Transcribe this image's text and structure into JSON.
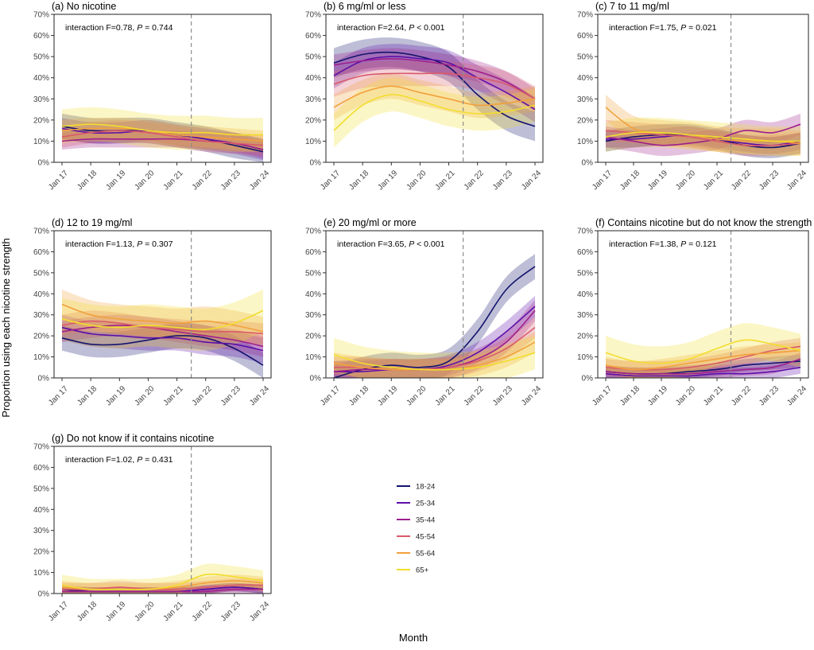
{
  "figure": {
    "ylabel": "Proportion using each nicotine strength",
    "xlabel": "Month"
  },
  "legend": {
    "position": "bottom-center",
    "items": [
      {
        "label": "18-24",
        "color": "#14146e"
      },
      {
        "label": "25-34",
        "color": "#5c0fa8"
      },
      {
        "label": "35-44",
        "color": "#9e1f8c"
      },
      {
        "label": "45-54",
        "color": "#d95a6a"
      },
      {
        "label": "55-64",
        "color": "#f2a03c"
      },
      {
        "label": "65+",
        "color": "#f2dd2e"
      }
    ]
  },
  "chart_data": [
    {
      "type": "line",
      "title": "(a) No nicotine",
      "annotation": {
        "prefix": "interaction F=0.78, ",
        "p_label": "P",
        "p_text": " = 0.744"
      },
      "categories": [
        "Jan 17",
        "Jan 18",
        "Jan 19",
        "Jan 20",
        "Jan 21",
        "Jan 22",
        "Jan 23",
        "Jan 24"
      ],
      "yticks": [
        "0%",
        "10%",
        "20%",
        "30%",
        "40%",
        "50%",
        "60%",
        "70%"
      ],
      "ylim": [
        0,
        70
      ],
      "vline_at": 4.5,
      "series": [
        {
          "name": "18-24",
          "values": [
            17,
            15,
            15,
            15,
            13,
            11,
            8,
            5
          ],
          "band": 6
        },
        {
          "name": "25-34",
          "values": [
            16,
            14,
            14,
            15,
            13,
            11,
            9,
            6
          ],
          "band": 5
        },
        {
          "name": "35-44",
          "values": [
            10,
            11,
            11,
            11,
            11,
            10,
            9,
            6
          ],
          "band": 4
        },
        {
          "name": "45-54",
          "values": [
            12,
            14,
            15,
            14,
            12,
            10,
            9,
            8
          ],
          "band": 5
        },
        {
          "name": "55-64",
          "values": [
            15,
            16,
            16,
            15,
            13,
            12,
            11,
            10
          ],
          "band": 5
        },
        {
          "name": "65+",
          "values": [
            17,
            18,
            17,
            15,
            14,
            14,
            13,
            13
          ],
          "band": 8
        }
      ]
    },
    {
      "type": "line",
      "title": "(b) 6 mg/ml or less",
      "annotation": {
        "prefix": "interaction F=2.64, ",
        "p_label": "P",
        "p_text": " < 0.001"
      },
      "categories": [
        "Jan 17",
        "Jan 18",
        "Jan 19",
        "Jan 20",
        "Jan 21",
        "Jan 22",
        "Jan 23",
        "Jan 24"
      ],
      "yticks": [
        "0%",
        "10%",
        "20%",
        "30%",
        "40%",
        "50%",
        "60%",
        "70%"
      ],
      "ylim": [
        0,
        70
      ],
      "vline_at": 4.5,
      "series": [
        {
          "name": "18-24",
          "values": [
            47,
            51,
            52,
            50,
            45,
            32,
            22,
            17
          ],
          "band": 7
        },
        {
          "name": "25-34",
          "values": [
            41,
            48,
            50,
            49,
            47,
            40,
            33,
            25
          ],
          "band": 6
        },
        {
          "name": "35-44",
          "values": [
            46,
            48,
            49,
            48,
            46,
            43,
            38,
            30
          ],
          "band": 5
        },
        {
          "name": "45-54",
          "values": [
            37,
            41,
            42,
            42,
            42,
            40,
            37,
            30
          ],
          "band": 6
        },
        {
          "name": "55-64",
          "values": [
            26,
            33,
            36,
            33,
            30,
            27,
            28,
            30
          ],
          "band": 6
        },
        {
          "name": "65+",
          "values": [
            15,
            27,
            32,
            29,
            25,
            23,
            24,
            27
          ],
          "band": 8
        }
      ]
    },
    {
      "type": "line",
      "title": "(c) 7 to 11 mg/ml",
      "annotation": {
        "prefix": "interaction F=1.75, ",
        "p_label": "P",
        "p_text": " = 0.021"
      },
      "categories": [
        "Jan 17",
        "Jan 18",
        "Jan 19",
        "Jan 20",
        "Jan 21",
        "Jan 22",
        "Jan 23",
        "Jan 24"
      ],
      "yticks": [
        "0%",
        "10%",
        "20%",
        "30%",
        "40%",
        "50%",
        "60%",
        "70%"
      ],
      "ylim": [
        0,
        70
      ],
      "vline_at": 4.5,
      "series": [
        {
          "name": "18-24",
          "values": [
            10,
            12,
            13,
            13,
            11,
            8,
            7,
            9
          ],
          "band": 5
        },
        {
          "name": "25-34",
          "values": [
            11,
            11,
            12,
            13,
            11,
            9,
            8,
            10
          ],
          "band": 4
        },
        {
          "name": "35-44",
          "values": [
            12,
            10,
            8,
            9,
            11,
            15,
            14,
            18
          ],
          "band": 5
        },
        {
          "name": "45-54",
          "values": [
            15,
            14,
            13,
            12,
            10,
            8,
            8,
            9
          ],
          "band": 5
        },
        {
          "name": "55-64",
          "values": [
            26,
            16,
            14,
            13,
            11,
            10,
            10,
            9
          ],
          "band": 6
        },
        {
          "name": "65+",
          "values": [
            12,
            14,
            14,
            13,
            12,
            11,
            10,
            10
          ],
          "band": 7
        }
      ]
    },
    {
      "type": "line",
      "title": "(d) 12 to 19 mg/ml",
      "annotation": {
        "prefix": "interaction F=1.13, ",
        "p_label": "P",
        "p_text": " = 0.307"
      },
      "categories": [
        "Jan 17",
        "Jan 18",
        "Jan 19",
        "Jan 20",
        "Jan 21",
        "Jan 22",
        "Jan 23",
        "Jan 24"
      ],
      "yticks": [
        "0%",
        "10%",
        "20%",
        "30%",
        "40%",
        "50%",
        "60%",
        "70%"
      ],
      "ylim": [
        0,
        70
      ],
      "vline_at": 4.5,
      "series": [
        {
          "name": "18-24",
          "values": [
            19,
            16,
            16,
            18,
            20,
            19,
            14,
            6
          ],
          "band": 6
        },
        {
          "name": "25-34",
          "values": [
            24,
            21,
            20,
            19,
            19,
            17,
            16,
            13
          ],
          "band": 6
        },
        {
          "name": "35-44",
          "values": [
            22,
            24,
            25,
            24,
            22,
            20,
            18,
            15
          ],
          "band": 5
        },
        {
          "name": "45-54",
          "values": [
            25,
            27,
            26,
            24,
            23,
            22,
            22,
            21
          ],
          "band": 5
        },
        {
          "name": "55-64",
          "values": [
            35,
            30,
            28,
            27,
            26,
            27,
            25,
            22
          ],
          "band": 7
        },
        {
          "name": "65+",
          "values": [
            28,
            25,
            24,
            25,
            24,
            23,
            26,
            32
          ],
          "band": 10
        }
      ]
    },
    {
      "type": "line",
      "title": "(e) 20 mg/ml or more",
      "annotation": {
        "prefix": "interaction F=3.65, ",
        "p_label": "P",
        "p_text": " < 0.001"
      },
      "categories": [
        "Jan 17",
        "Jan 18",
        "Jan 19",
        "Jan 20",
        "Jan 21",
        "Jan 22",
        "Jan 23",
        "Jan 24"
      ],
      "yticks": [
        "0%",
        "10%",
        "20%",
        "30%",
        "40%",
        "50%",
        "60%",
        "70%"
      ],
      "ylim": [
        0,
        70
      ],
      "vline_at": 4.5,
      "series": [
        {
          "name": "18-24",
          "values": [
            0,
            4,
            6,
            5,
            8,
            22,
            42,
            53
          ],
          "band": 6
        },
        {
          "name": "25-34",
          "values": [
            3,
            3,
            4,
            4,
            6,
            12,
            22,
            34
          ],
          "band": 5
        },
        {
          "name": "35-44",
          "values": [
            3,
            4,
            4,
            4,
            5,
            9,
            17,
            32
          ],
          "band": 5
        },
        {
          "name": "45-54",
          "values": [
            5,
            5,
            4,
            4,
            5,
            8,
            14,
            24
          ],
          "band": 5
        },
        {
          "name": "55-64",
          "values": [
            7,
            5,
            4,
            4,
            4,
            6,
            10,
            17
          ],
          "band": 5
        },
        {
          "name": "65+",
          "values": [
            11,
            7,
            5,
            4,
            4,
            5,
            8,
            12
          ],
          "band": 8
        }
      ]
    },
    {
      "type": "line",
      "title": "(f) Contains nicotine but do not know the strength",
      "annotation": {
        "prefix": "interaction F=1.38, ",
        "p_label": "P",
        "p_text": " = 0.121"
      },
      "categories": [
        "Jan 17",
        "Jan 18",
        "Jan 19",
        "Jan 20",
        "Jan 21",
        "Jan 22",
        "Jan 23",
        "Jan 24"
      ],
      "yticks": [
        "0%",
        "10%",
        "20%",
        "30%",
        "40%",
        "50%",
        "60%",
        "70%"
      ],
      "ylim": [
        0,
        70
      ],
      "vline_at": 4.5,
      "series": [
        {
          "name": "18-24",
          "values": [
            3,
            2,
            2,
            3,
            4,
            6,
            7,
            8
          ],
          "band": 3
        },
        {
          "name": "25-34",
          "values": [
            2,
            1,
            1,
            1,
            2,
            2,
            3,
            5
          ],
          "band": 3
        },
        {
          "name": "35-44",
          "values": [
            3,
            2,
            2,
            2,
            3,
            4,
            5,
            9
          ],
          "band": 3
        },
        {
          "name": "45-54",
          "values": [
            5,
            4,
            4,
            5,
            7,
            10,
            13,
            15
          ],
          "band": 4
        },
        {
          "name": "55-64",
          "values": [
            6,
            4,
            5,
            7,
            9,
            11,
            12,
            13
          ],
          "band": 4
        },
        {
          "name": "65+",
          "values": [
            12,
            8,
            7,
            9,
            14,
            18,
            16,
            13
          ],
          "band": 8
        }
      ]
    },
    {
      "type": "line",
      "title": "(g) Do not know if it contains nicotine",
      "annotation": {
        "prefix": "interaction F=1.02, ",
        "p_label": "P",
        "p_text": " = 0.431"
      },
      "categories": [
        "Jan 17",
        "Jan 18",
        "Jan 19",
        "Jan 20",
        "Jan 21",
        "Jan 22",
        "Jan 23",
        "Jan 24"
      ],
      "yticks": [
        "0%",
        "10%",
        "20%",
        "30%",
        "40%",
        "50%",
        "60%",
        "70%"
      ],
      "ylim": [
        0,
        70
      ],
      "vline_at": 4.5,
      "series": [
        {
          "name": "18-24",
          "values": [
            2,
            1,
            1,
            1,
            1,
            2,
            3,
            2
          ],
          "band": 2
        },
        {
          "name": "25-34",
          "values": [
            1,
            1,
            1,
            1,
            1,
            2,
            3,
            2
          ],
          "band": 2
        },
        {
          "name": "35-44",
          "values": [
            1,
            1,
            1,
            1,
            1,
            1,
            2,
            2
          ],
          "band": 2
        },
        {
          "name": "45-54",
          "values": [
            2,
            2,
            3,
            2,
            2,
            3,
            4,
            4
          ],
          "band": 3
        },
        {
          "name": "55-64",
          "values": [
            3,
            2,
            2,
            2,
            3,
            5,
            6,
            5
          ],
          "band": 3
        },
        {
          "name": "65+",
          "values": [
            4,
            2,
            2,
            2,
            4,
            9,
            8,
            6
          ],
          "band": 5
        }
      ]
    }
  ]
}
